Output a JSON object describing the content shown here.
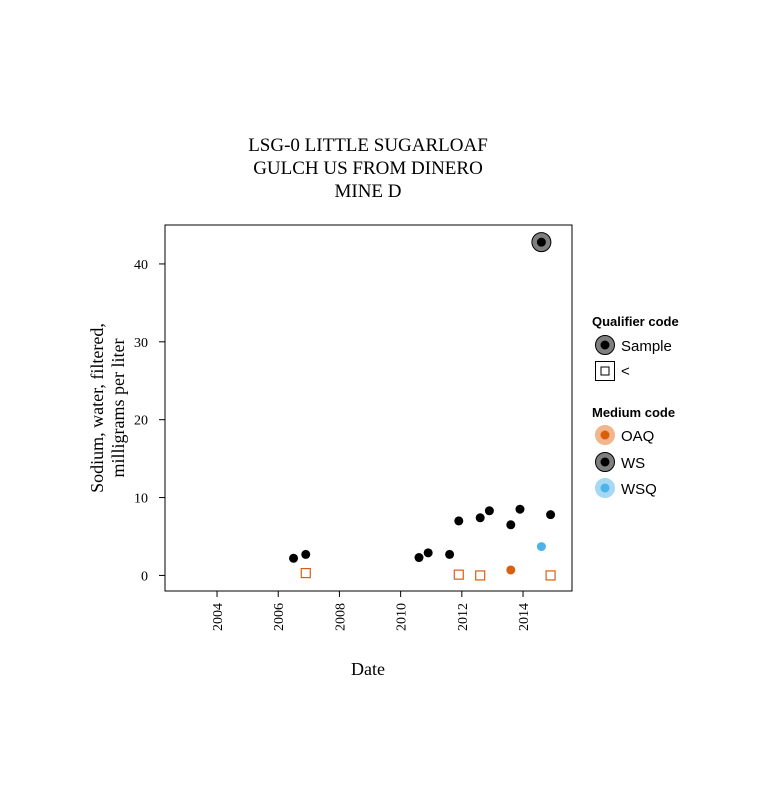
{
  "chart_data": {
    "type": "scatter",
    "title_lines": [
      "LSG-0 LITTLE SUGARLOAF",
      "GULCH US FROM DINERO",
      "MINE D"
    ],
    "xlabel": "Date",
    "ylabel_lines": [
      "Sodium, water, filtered,",
      "milligrams per liter"
    ],
    "xlim": [
      2002.3,
      2015.6
    ],
    "ylim": [
      -2,
      45
    ],
    "xticks": [
      2004,
      2006,
      2008,
      2010,
      2012,
      2014
    ],
    "xtick_labels": [
      "2004",
      "2006",
      "2008",
      "2010",
      "2012",
      "2014"
    ],
    "yticks": [
      0,
      10,
      20,
      30,
      40
    ],
    "ytick_labels": [
      "0",
      "10",
      "20",
      "30",
      "40"
    ],
    "grid": false,
    "legend_position": "right",
    "legend": {
      "qualifier_title": "Qualifier code",
      "qualifier_items": [
        {
          "label": "Sample",
          "symbol": "sample"
        },
        {
          "label": "<",
          "symbol": "less-than"
        }
      ],
      "medium_title": "Medium code",
      "medium_items": [
        {
          "label": "OAQ",
          "color": "#d95f0e"
        },
        {
          "label": "WS",
          "color": "#000000"
        },
        {
          "label": "WSQ",
          "color": "#4eb3e8"
        }
      ]
    },
    "series": [
      {
        "medium": "WS",
        "qualifier": "Sample",
        "color": "#000000",
        "points": [
          {
            "x": 2006.5,
            "y": 2.2
          },
          {
            "x": 2006.9,
            "y": 2.7
          },
          {
            "x": 2010.6,
            "y": 2.3
          },
          {
            "x": 2010.9,
            "y": 2.9
          },
          {
            "x": 2011.6,
            "y": 2.7
          },
          {
            "x": 2011.9,
            "y": 7.0
          },
          {
            "x": 2012.6,
            "y": 7.4
          },
          {
            "x": 2012.9,
            "y": 8.3
          },
          {
            "x": 2013.6,
            "y": 6.5
          },
          {
            "x": 2013.9,
            "y": 8.5
          },
          {
            "x": 2014.6,
            "y": 42.8,
            "emphasis": true
          },
          {
            "x": 2014.9,
            "y": 7.8
          }
        ]
      },
      {
        "medium": "OAQ",
        "qualifier": "Sample",
        "color": "#d95f0e",
        "points": [
          {
            "x": 2013.6,
            "y": 0.7
          }
        ]
      },
      {
        "medium": "WSQ",
        "qualifier": "Sample",
        "color": "#4eb3e8",
        "points": [
          {
            "x": 2014.6,
            "y": 3.7
          }
        ]
      },
      {
        "medium": "OAQ",
        "qualifier": "<",
        "color": "#d95f0e",
        "points": [
          {
            "x": 2006.9,
            "y": 0.3
          },
          {
            "x": 2011.9,
            "y": 0.1
          },
          {
            "x": 2012.6,
            "y": 0.0
          },
          {
            "x": 2014.9,
            "y": 0.0
          }
        ]
      }
    ]
  }
}
